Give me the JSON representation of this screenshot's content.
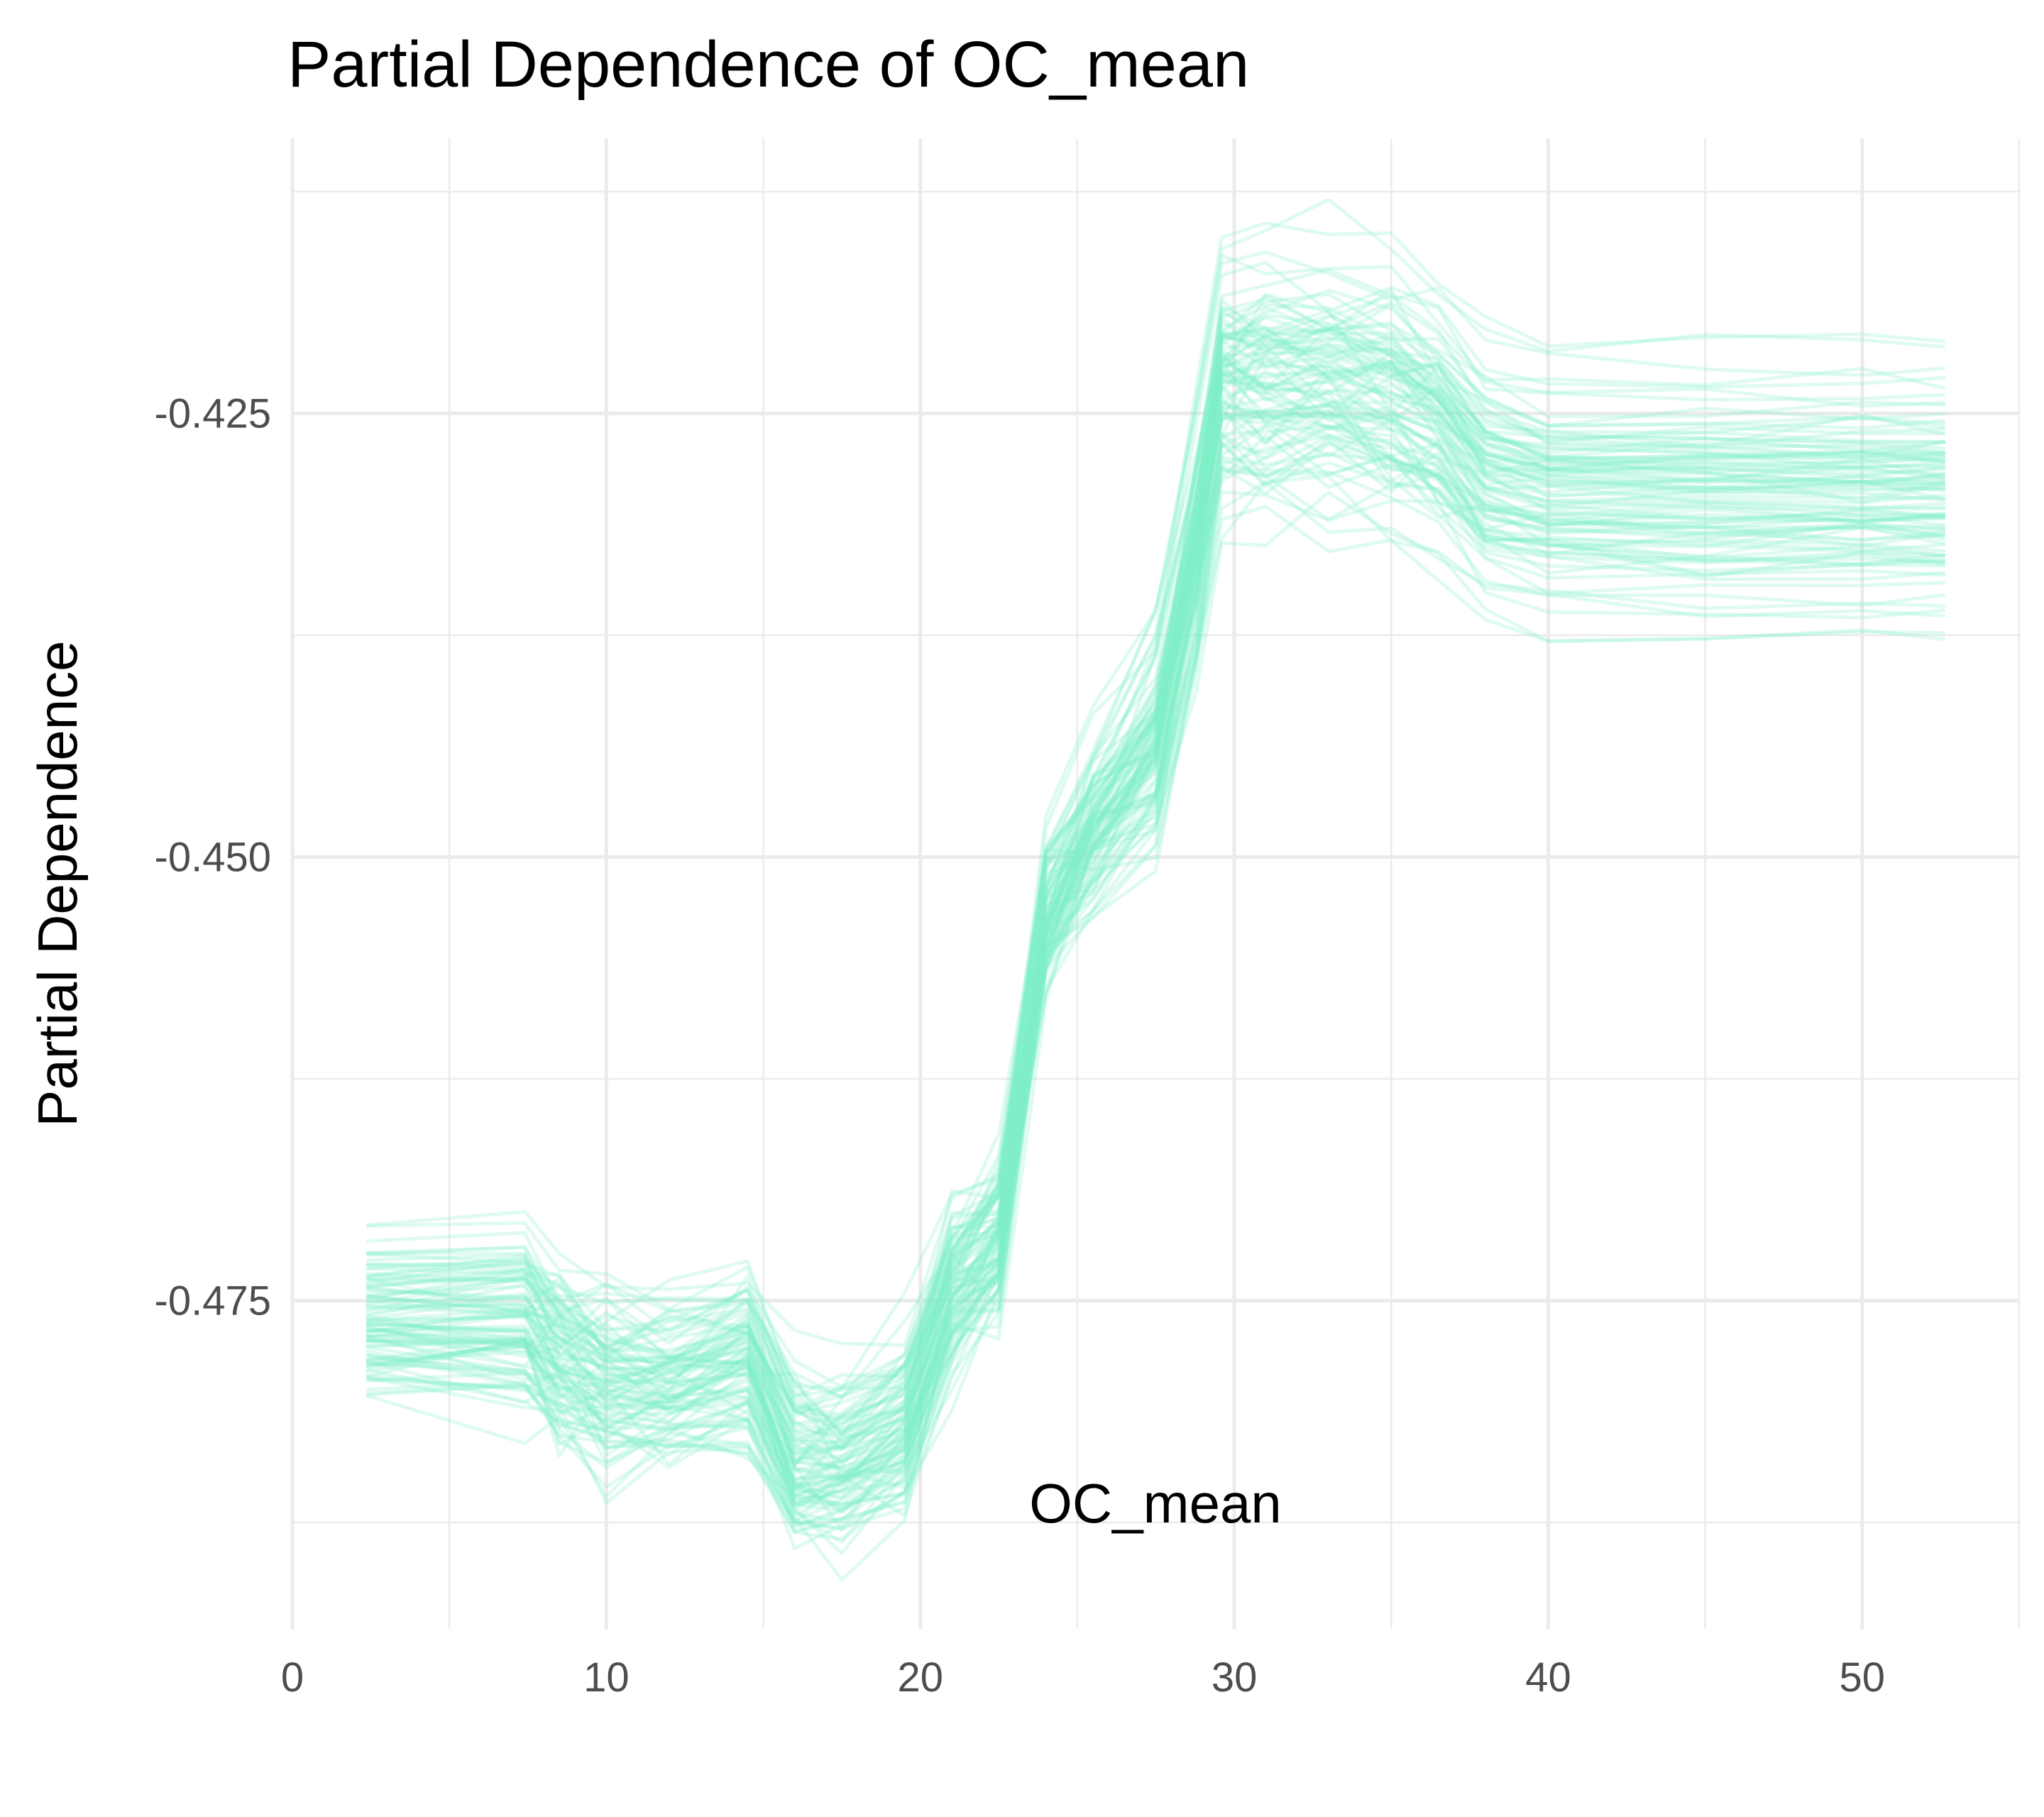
{
  "chart_data": {
    "type": "line",
    "title": "Partial Dependence of OC_mean",
    "xlabel": "OC_mean",
    "ylabel": "Partial Dependence",
    "xlim": [
      0,
      55
    ],
    "ylim": [
      -0.4935,
      -0.4095
    ],
    "x_ticks": [
      0,
      10,
      20,
      30,
      40,
      50
    ],
    "x_tick_labels": [
      "0",
      "10",
      "20",
      "30",
      "40",
      "50"
    ],
    "y_ticks": [
      -0.475,
      -0.45,
      -0.425
    ],
    "y_tick_labels": [
      "-0.475",
      "-0.450",
      "-0.425"
    ],
    "x_minor_ticks": [
      5,
      15,
      25,
      35,
      45,
      55
    ],
    "y_minor_ticks": [
      -0.4875,
      -0.4625,
      -0.4375,
      -0.4125
    ],
    "grid": true,
    "legend": "none",
    "line_color": "#7ff0c8",
    "line_opacity": 0.25,
    "x": [
      2.4,
      7.4,
      8.5,
      10,
      12,
      14.5,
      16,
      17.5,
      19.5,
      21,
      22.5,
      24,
      25.5,
      27.5,
      28.8,
      29.6,
      31,
      33,
      35,
      36.5,
      38,
      40,
      45,
      50,
      52.6
    ],
    "mean_curve": [
      -0.4763,
      -0.4763,
      -0.4785,
      -0.4798,
      -0.4797,
      -0.4787,
      -0.4842,
      -0.4842,
      -0.4822,
      -0.4745,
      -0.4715,
      -0.4535,
      -0.4485,
      -0.4435,
      -0.4325,
      -0.4232,
      -0.4232,
      -0.4232,
      -0.4238,
      -0.4255,
      -0.4285,
      -0.4295,
      -0.4295,
      -0.4295,
      -0.4295
    ],
    "series_count": 100
  }
}
